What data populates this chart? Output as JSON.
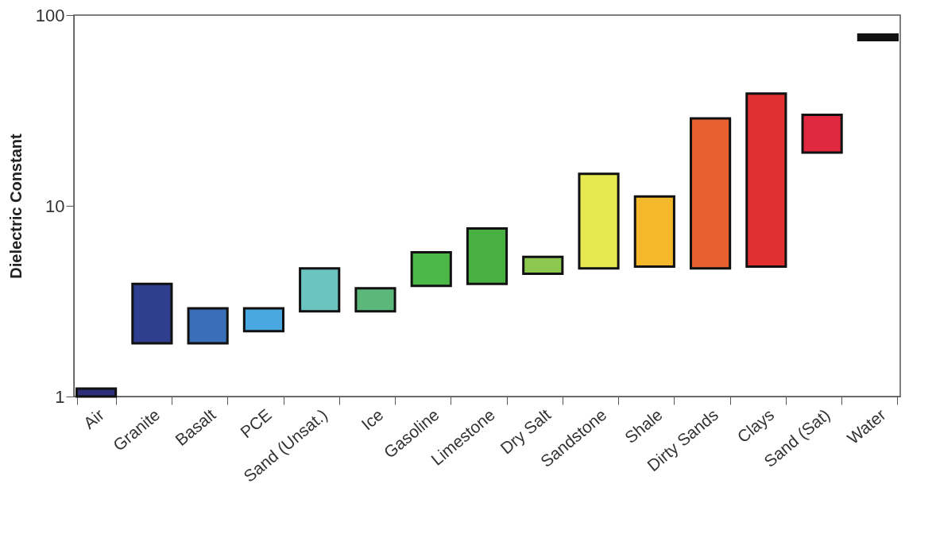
{
  "chart_data": {
    "type": "bar",
    "ylabel": "Dielectric Constant",
    "categories": [
      "Air",
      "Granite",
      "Basalt",
      "PCE",
      "Sand (Unsat.)",
      "Ice",
      "Gasoline",
      "Limestone",
      "Dry Salt",
      "Sandstone",
      "Shale",
      "Dirty Sands",
      "Clays",
      "Sand (Sat)",
      "Water"
    ],
    "base": [
      1,
      1.9,
      1.9,
      2.2,
      2.8,
      2.8,
      3.8,
      3.9,
      4.4,
      4.7,
      4.8,
      4.7,
      4.8,
      19,
      74
    ],
    "values": [
      0.1,
      2,
      1,
      0.7,
      1.9,
      0.9,
      1.9,
      3.7,
      1,
      10,
      6.4,
      24,
      34,
      11,
      5
    ],
    "colors": [
      "#2e2e7a",
      "#2e3f8f",
      "#3a6fb8",
      "#4aa8e0",
      "#6cc4c0",
      "#5cb87a",
      "#4cb848",
      "#48b040",
      "#8cc850",
      "#e8e850",
      "#f5b82a",
      "#e86030",
      "#e03030",
      "#e02840",
      "#111111"
    ],
    "log": true,
    "ylim": [
      1,
      100
    ],
    "yticks": [
      1,
      10,
      100
    ]
  }
}
